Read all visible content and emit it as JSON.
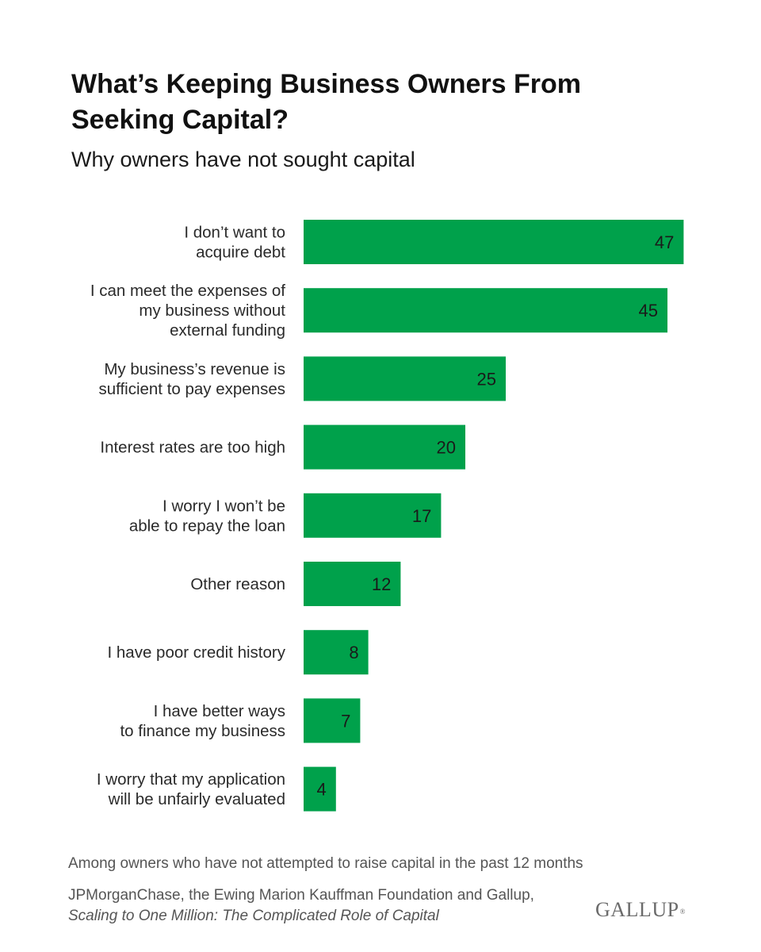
{
  "header": {
    "title": "What’s Keeping Business Owners From Seeking Capital?",
    "subtitle": "Why owners have not sought capital"
  },
  "chart_data": {
    "type": "bar",
    "orientation": "horizontal",
    "categories": [
      [
        "I don’t want to",
        "acquire debt"
      ],
      [
        "I can meet the expenses of",
        "my business without",
        "external funding"
      ],
      [
        "My business’s revenue is",
        "sufficient to pay expenses"
      ],
      [
        "Interest rates are too high"
      ],
      [
        "I worry I won’t be",
        "able to repay the loan"
      ],
      [
        "Other reason"
      ],
      [
        "I have poor credit history"
      ],
      [
        "I have better ways",
        "to finance my business"
      ],
      [
        "I worry that my application",
        "will be unfairly evaluated"
      ]
    ],
    "values": [
      47,
      45,
      25,
      20,
      17,
      12,
      8,
      7,
      4
    ],
    "bar_color": "#00A14B",
    "grid": false,
    "legend": "none"
  },
  "footer": {
    "note": "Among owners who have not attempted to raise capital in the past 12 months",
    "source_prefix": "JPMorganChase, the Ewing Marion Kauffman Foundation and Gallup, ",
    "source_publication": "Scaling to One Million: The Complicated Role of Capital",
    "logo_text": "GALLUP",
    "logo_mark": "®"
  }
}
